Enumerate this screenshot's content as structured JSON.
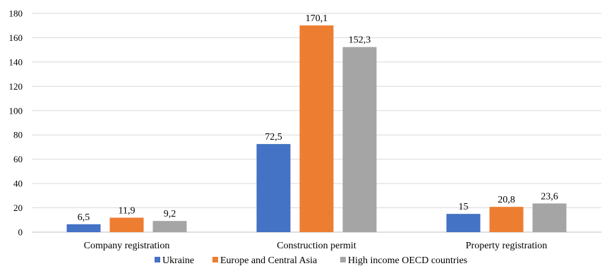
{
  "chart_data": {
    "type": "bar",
    "categories": [
      "Company registration",
      "Construction permit",
      "Property registration"
    ],
    "series": [
      {
        "name": "Ukraine",
        "values": [
          6.5,
          72.5,
          15
        ],
        "labels": [
          "6,5",
          "72,5",
          "15"
        ],
        "color": "#4472C4"
      },
      {
        "name": "Europe and Central Asia",
        "values": [
          11.9,
          170.1,
          20.8
        ],
        "labels": [
          "11,9",
          "170,1",
          "20,8"
        ],
        "color": "#ED7D31"
      },
      {
        "name": "High income OECD countries",
        "values": [
          9.2,
          152.3,
          23.6
        ],
        "labels": [
          "9,2",
          "152,3",
          "23,6"
        ],
        "color": "#A5A5A5"
      }
    ],
    "ylim": [
      0,
      180
    ],
    "yticks": [
      0,
      20,
      40,
      60,
      80,
      100,
      120,
      140,
      160,
      180
    ],
    "grid": true,
    "legend_position": "bottom"
  }
}
